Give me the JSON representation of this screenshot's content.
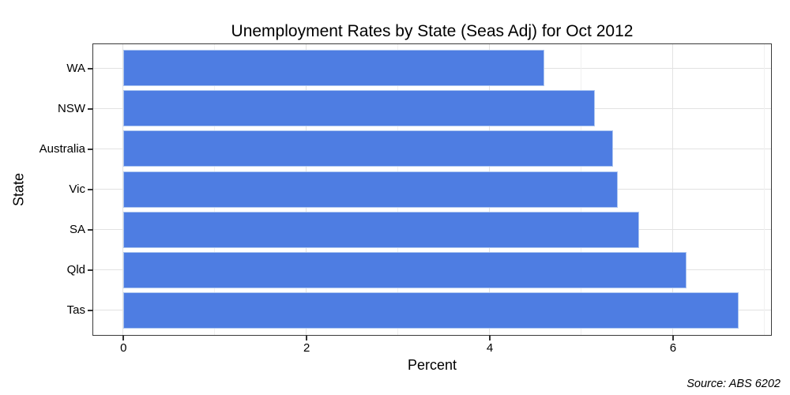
{
  "chart_data": {
    "type": "bar",
    "orientation": "horizontal",
    "title": "Unemployment Rates by State (Seas Adj) for Oct 2012",
    "xlabel": "Percent",
    "ylabel": "State",
    "source_note": "Source: ABS 6202",
    "categories": [
      "WA",
      "NSW",
      "Australia",
      "Vic",
      "SA",
      "Qld",
      "Tas"
    ],
    "values": [
      4.6,
      5.15,
      5.35,
      5.4,
      5.63,
      6.15,
      6.72
    ],
    "x_ticks": [
      0,
      2,
      4,
      6
    ],
    "x_minor_gridlines": [
      1,
      3,
      5,
      7
    ],
    "xlim": [
      -0.33,
      7.07
    ],
    "grid": true,
    "legend": false,
    "colors": {
      "bar_fill": "#4e7de2",
      "bar_border": "#adc6f0",
      "grid_major": "#e2e2e2",
      "grid_minor": "#f1f1f1",
      "panel_border": "#3a3a3a",
      "tick": "#333333",
      "text": "#000000",
      "background": "#ffffff"
    }
  }
}
